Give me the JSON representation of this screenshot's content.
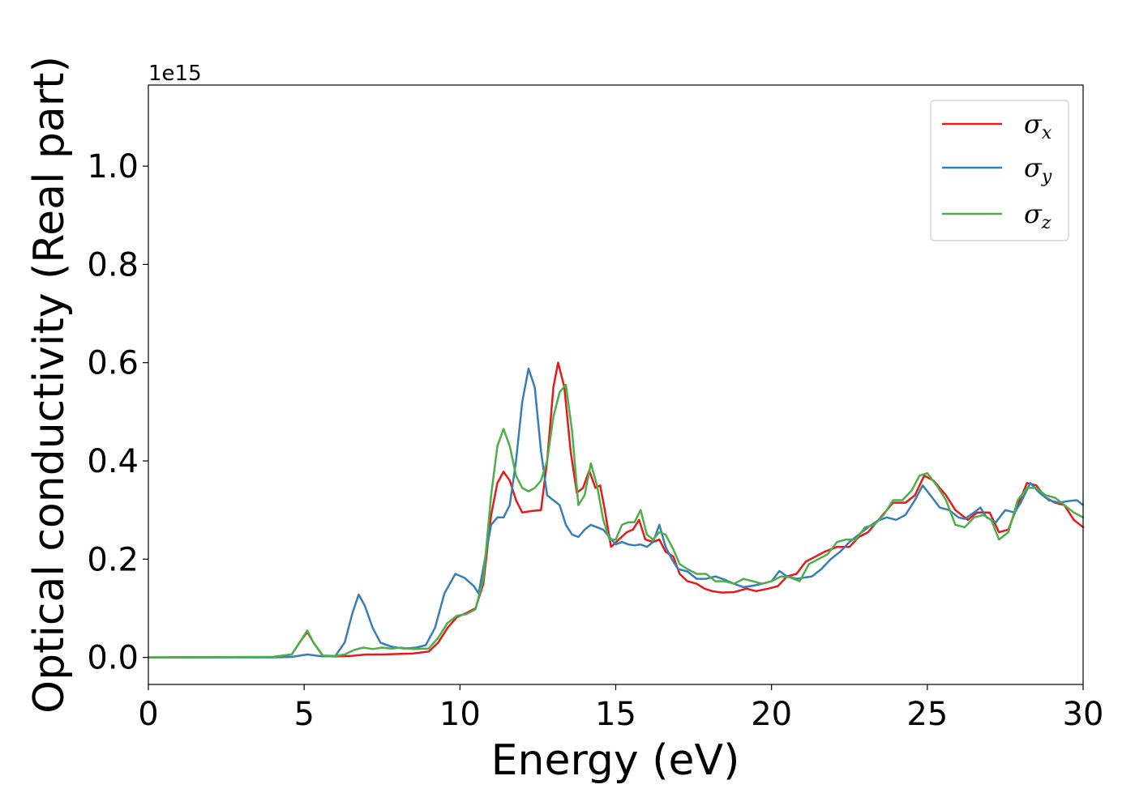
{
  "chart_data": {
    "type": "line",
    "xlabel": "Energy (eV)",
    "ylabel": "Optical conductivity (Real part)",
    "offset_text": "1e15",
    "xlim": [
      0,
      30
    ],
    "ylim": [
      -0.055,
      1.165
    ],
    "xticks": [
      0,
      5,
      10,
      15,
      20,
      25,
      30
    ],
    "xtick_labels": [
      "0",
      "5",
      "10",
      "15",
      "20",
      "25",
      "30"
    ],
    "yticks": [
      0.0,
      0.2,
      0.4,
      0.6,
      0.8,
      1.0
    ],
    "ytick_labels": [
      "0.0",
      "0.2",
      "0.4",
      "0.6",
      "0.8",
      "1.0"
    ],
    "grid": false,
    "legend_position": "top-right",
    "series": [
      {
        "name": "σx",
        "label_main": "σ",
        "label_sub": "x",
        "color": "#e41a1c",
        "points": [
          [
            0,
            0
          ],
          [
            4,
            0.001
          ],
          [
            4.6,
            0.006
          ],
          [
            4.85,
            0.03
          ],
          [
            5.1,
            0.052
          ],
          [
            5.3,
            0.03
          ],
          [
            5.6,
            0.003
          ],
          [
            6.0,
            0.002
          ],
          [
            6.5,
            0.003
          ],
          [
            7.0,
            0.006
          ],
          [
            7.5,
            0.006
          ],
          [
            8.0,
            0.007
          ],
          [
            8.5,
            0.008
          ],
          [
            9.0,
            0.012
          ],
          [
            9.3,
            0.03
          ],
          [
            9.6,
            0.06
          ],
          [
            9.9,
            0.082
          ],
          [
            10.2,
            0.09
          ],
          [
            10.5,
            0.1
          ],
          [
            10.75,
            0.15
          ],
          [
            11.0,
            0.29
          ],
          [
            11.2,
            0.355
          ],
          [
            11.4,
            0.378
          ],
          [
            11.6,
            0.36
          ],
          [
            11.8,
            0.32
          ],
          [
            12.0,
            0.295
          ],
          [
            12.3,
            0.298
          ],
          [
            12.6,
            0.3
          ],
          [
            12.8,
            0.4
          ],
          [
            13.0,
            0.55
          ],
          [
            13.15,
            0.6
          ],
          [
            13.35,
            0.55
          ],
          [
            13.55,
            0.42
          ],
          [
            13.75,
            0.335
          ],
          [
            13.95,
            0.345
          ],
          [
            14.15,
            0.38
          ],
          [
            14.35,
            0.345
          ],
          [
            14.5,
            0.35
          ],
          [
            14.65,
            0.3
          ],
          [
            14.85,
            0.225
          ],
          [
            15.1,
            0.24
          ],
          [
            15.35,
            0.255
          ],
          [
            15.55,
            0.26
          ],
          [
            15.75,
            0.28
          ],
          [
            15.95,
            0.24
          ],
          [
            16.2,
            0.235
          ],
          [
            16.4,
            0.24
          ],
          [
            16.6,
            0.215
          ],
          [
            16.85,
            0.205
          ],
          [
            17.05,
            0.17
          ],
          [
            17.3,
            0.155
          ],
          [
            17.6,
            0.15
          ],
          [
            17.85,
            0.14
          ],
          [
            18.1,
            0.135
          ],
          [
            18.4,
            0.132
          ],
          [
            18.8,
            0.133
          ],
          [
            19.2,
            0.14
          ],
          [
            19.5,
            0.135
          ],
          [
            19.9,
            0.14
          ],
          [
            20.2,
            0.145
          ],
          [
            20.5,
            0.165
          ],
          [
            20.8,
            0.17
          ],
          [
            21.1,
            0.195
          ],
          [
            21.4,
            0.205
          ],
          [
            21.7,
            0.215
          ],
          [
            22.1,
            0.225
          ],
          [
            22.5,
            0.225
          ],
          [
            22.8,
            0.245
          ],
          [
            23.1,
            0.255
          ],
          [
            23.5,
            0.285
          ],
          [
            23.9,
            0.315
          ],
          [
            24.3,
            0.315
          ],
          [
            24.6,
            0.33
          ],
          [
            24.9,
            0.37
          ],
          [
            25.2,
            0.36
          ],
          [
            25.6,
            0.33
          ],
          [
            25.9,
            0.3
          ],
          [
            26.3,
            0.28
          ],
          [
            26.6,
            0.295
          ],
          [
            27.0,
            0.295
          ],
          [
            27.3,
            0.255
          ],
          [
            27.6,
            0.26
          ],
          [
            27.9,
            0.31
          ],
          [
            28.2,
            0.355
          ],
          [
            28.5,
            0.35
          ],
          [
            28.8,
            0.325
          ],
          [
            29.1,
            0.315
          ],
          [
            29.4,
            0.31
          ],
          [
            29.7,
            0.28
          ],
          [
            30,
            0.265
          ]
        ]
      },
      {
        "name": "σy",
        "label_main": "σ",
        "label_sub": "y",
        "color": "#377eb8",
        "points": [
          [
            0,
            0
          ],
          [
            4,
            0.0
          ],
          [
            4.6,
            0.001
          ],
          [
            5.1,
            0.006
          ],
          [
            5.6,
            0.002
          ],
          [
            6.0,
            0.003
          ],
          [
            6.3,
            0.03
          ],
          [
            6.55,
            0.09
          ],
          [
            6.75,
            0.128
          ],
          [
            6.95,
            0.105
          ],
          [
            7.2,
            0.06
          ],
          [
            7.45,
            0.03
          ],
          [
            7.8,
            0.022
          ],
          [
            8.2,
            0.018
          ],
          [
            8.6,
            0.02
          ],
          [
            8.9,
            0.025
          ],
          [
            9.2,
            0.06
          ],
          [
            9.5,
            0.13
          ],
          [
            9.85,
            0.17
          ],
          [
            10.15,
            0.162
          ],
          [
            10.45,
            0.145
          ],
          [
            10.6,
            0.13
          ],
          [
            10.8,
            0.2
          ],
          [
            11.0,
            0.27
          ],
          [
            11.2,
            0.285
          ],
          [
            11.4,
            0.285
          ],
          [
            11.6,
            0.31
          ],
          [
            11.8,
            0.4
          ],
          [
            12.0,
            0.52
          ],
          [
            12.2,
            0.588
          ],
          [
            12.4,
            0.55
          ],
          [
            12.6,
            0.42
          ],
          [
            12.8,
            0.33
          ],
          [
            13.0,
            0.32
          ],
          [
            13.2,
            0.31
          ],
          [
            13.4,
            0.27
          ],
          [
            13.6,
            0.25
          ],
          [
            13.8,
            0.245
          ],
          [
            14.0,
            0.26
          ],
          [
            14.2,
            0.27
          ],
          [
            14.4,
            0.265
          ],
          [
            14.6,
            0.26
          ],
          [
            14.8,
            0.245
          ],
          [
            15.0,
            0.23
          ],
          [
            15.2,
            0.235
          ],
          [
            15.4,
            0.23
          ],
          [
            15.6,
            0.228
          ],
          [
            15.8,
            0.23
          ],
          [
            16.0,
            0.225
          ],
          [
            16.2,
            0.235
          ],
          [
            16.4,
            0.27
          ],
          [
            16.6,
            0.225
          ],
          [
            16.8,
            0.2
          ],
          [
            17.0,
            0.18
          ],
          [
            17.3,
            0.175
          ],
          [
            17.6,
            0.16
          ],
          [
            17.9,
            0.16
          ],
          [
            18.2,
            0.165
          ],
          [
            18.5,
            0.158
          ],
          [
            18.8,
            0.15
          ],
          [
            19.1,
            0.143
          ],
          [
            19.4,
            0.146
          ],
          [
            19.7,
            0.15
          ],
          [
            20.0,
            0.155
          ],
          [
            20.25,
            0.176
          ],
          [
            20.5,
            0.165
          ],
          [
            20.8,
            0.16
          ],
          [
            21.0,
            0.162
          ],
          [
            21.3,
            0.165
          ],
          [
            21.6,
            0.18
          ],
          [
            21.9,
            0.2
          ],
          [
            22.2,
            0.215
          ],
          [
            22.5,
            0.235
          ],
          [
            22.8,
            0.25
          ],
          [
            23.1,
            0.265
          ],
          [
            23.4,
            0.278
          ],
          [
            23.7,
            0.285
          ],
          [
            24.0,
            0.28
          ],
          [
            24.3,
            0.29
          ],
          [
            24.6,
            0.32
          ],
          [
            24.85,
            0.35
          ],
          [
            25.1,
            0.33
          ],
          [
            25.4,
            0.305
          ],
          [
            25.7,
            0.3
          ],
          [
            26.0,
            0.285
          ],
          [
            26.2,
            0.282
          ],
          [
            26.5,
            0.295
          ],
          [
            26.7,
            0.305
          ],
          [
            26.9,
            0.285
          ],
          [
            27.2,
            0.275
          ],
          [
            27.5,
            0.3
          ],
          [
            27.8,
            0.295
          ],
          [
            28.0,
            0.315
          ],
          [
            28.3,
            0.355
          ],
          [
            28.6,
            0.335
          ],
          [
            28.9,
            0.32
          ],
          [
            29.2,
            0.315
          ],
          [
            29.5,
            0.318
          ],
          [
            29.8,
            0.32
          ],
          [
            30,
            0.31
          ]
        ]
      },
      {
        "name": "σz",
        "label_main": "σ",
        "label_sub": "z",
        "color": "#4daf4a",
        "points": [
          [
            0,
            0
          ],
          [
            4,
            0.001
          ],
          [
            4.6,
            0.006
          ],
          [
            4.85,
            0.03
          ],
          [
            5.1,
            0.055
          ],
          [
            5.3,
            0.03
          ],
          [
            5.6,
            0.004
          ],
          [
            6.0,
            0.003
          ],
          [
            6.3,
            0.006
          ],
          [
            6.6,
            0.015
          ],
          [
            6.9,
            0.02
          ],
          [
            7.2,
            0.017
          ],
          [
            7.5,
            0.02
          ],
          [
            7.8,
            0.018
          ],
          [
            8.1,
            0.02
          ],
          [
            8.5,
            0.017
          ],
          [
            9.0,
            0.018
          ],
          [
            9.3,
            0.04
          ],
          [
            9.6,
            0.07
          ],
          [
            9.9,
            0.085
          ],
          [
            10.2,
            0.088
          ],
          [
            10.5,
            0.098
          ],
          [
            10.75,
            0.16
          ],
          [
            11.0,
            0.33
          ],
          [
            11.2,
            0.43
          ],
          [
            11.4,
            0.465
          ],
          [
            11.6,
            0.43
          ],
          [
            11.8,
            0.37
          ],
          [
            12.0,
            0.345
          ],
          [
            12.2,
            0.338
          ],
          [
            12.4,
            0.345
          ],
          [
            12.6,
            0.36
          ],
          [
            12.8,
            0.4
          ],
          [
            13.0,
            0.49
          ],
          [
            13.2,
            0.54
          ],
          [
            13.4,
            0.555
          ],
          [
            13.6,
            0.46
          ],
          [
            13.8,
            0.31
          ],
          [
            14.0,
            0.33
          ],
          [
            14.2,
            0.395
          ],
          [
            14.4,
            0.35
          ],
          [
            14.6,
            0.28
          ],
          [
            14.8,
            0.24
          ],
          [
            15.0,
            0.24
          ],
          [
            15.2,
            0.27
          ],
          [
            15.4,
            0.275
          ],
          [
            15.6,
            0.275
          ],
          [
            15.8,
            0.3
          ],
          [
            16.0,
            0.25
          ],
          [
            16.2,
            0.24
          ],
          [
            16.4,
            0.255
          ],
          [
            16.6,
            0.25
          ],
          [
            16.85,
            0.22
          ],
          [
            17.05,
            0.19
          ],
          [
            17.3,
            0.18
          ],
          [
            17.6,
            0.17
          ],
          [
            17.9,
            0.17
          ],
          [
            18.2,
            0.155
          ],
          [
            18.5,
            0.155
          ],
          [
            18.8,
            0.15
          ],
          [
            19.1,
            0.16
          ],
          [
            19.4,
            0.155
          ],
          [
            19.7,
            0.15
          ],
          [
            20.0,
            0.155
          ],
          [
            20.3,
            0.165
          ],
          [
            20.6,
            0.163
          ],
          [
            20.9,
            0.155
          ],
          [
            21.2,
            0.19
          ],
          [
            21.5,
            0.2
          ],
          [
            21.8,
            0.21
          ],
          [
            22.1,
            0.235
          ],
          [
            22.4,
            0.24
          ],
          [
            22.7,
            0.24
          ],
          [
            23.0,
            0.265
          ],
          [
            23.3,
            0.27
          ],
          [
            23.6,
            0.29
          ],
          [
            23.9,
            0.32
          ],
          [
            24.2,
            0.32
          ],
          [
            24.5,
            0.34
          ],
          [
            24.75,
            0.37
          ],
          [
            25.0,
            0.375
          ],
          [
            25.3,
            0.35
          ],
          [
            25.6,
            0.32
          ],
          [
            25.9,
            0.27
          ],
          [
            26.2,
            0.265
          ],
          [
            26.5,
            0.285
          ],
          [
            26.8,
            0.29
          ],
          [
            27.05,
            0.28
          ],
          [
            27.3,
            0.24
          ],
          [
            27.6,
            0.255
          ],
          [
            27.9,
            0.32
          ],
          [
            28.2,
            0.345
          ],
          [
            28.5,
            0.345
          ],
          [
            28.8,
            0.33
          ],
          [
            29.1,
            0.325
          ],
          [
            29.4,
            0.31
          ],
          [
            29.7,
            0.295
          ],
          [
            30,
            0.285
          ]
        ]
      }
    ]
  }
}
